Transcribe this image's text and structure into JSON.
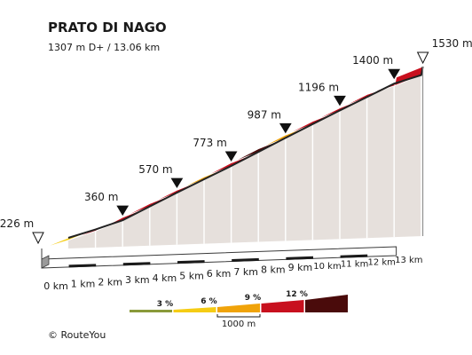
{
  "title": "PRATO DI NAGO",
  "subtitle": "1307 m D+ / 13.06 km",
  "copyright": "©  RouteYou",
  "chart_data": {
    "type": "area",
    "x": [
      0,
      1,
      2,
      3,
      4,
      5,
      6,
      7,
      8,
      9,
      10,
      11,
      12,
      13
    ],
    "x_tick_labels": [
      "0 km",
      "1 km",
      "2 km",
      "3 km",
      "4 km",
      "5 km",
      "6 km",
      "7 km",
      "8 km",
      "9 km",
      "10 km",
      "11 km",
      "12 km",
      "13 km"
    ],
    "elevation_m": [
      226,
      290,
      360,
      465,
      570,
      672,
      773,
      880,
      987,
      1092,
      1196,
      1298,
      1400,
      1465,
      1530
    ],
    "elevation_x_km": [
      0,
      1,
      2,
      3,
      4,
      5,
      6,
      7,
      8,
      9,
      10,
      11,
      12,
      13,
      13.06
    ],
    "segment_colors": [
      "#f5cc14",
      "#c8101e",
      "#c8101e",
      "#c8101e",
      "#c8101e",
      "#f0a30a",
      "#c8101e",
      "#4a0b0b",
      "#f0a30a",
      "#c8101e",
      "#c8101e",
      "#c8101e",
      "#c8101e",
      "#c8101e"
    ],
    "markers": [
      {
        "label": "226 m",
        "x": 0,
        "kind": "start"
      },
      {
        "label": "360 m",
        "x": 2,
        "kind": "point"
      },
      {
        "label": "570 m",
        "x": 4,
        "kind": "point"
      },
      {
        "label": "773 m",
        "x": 6,
        "kind": "point"
      },
      {
        "label": "987 m",
        "x": 8,
        "kind": "point"
      },
      {
        "label": "1196 m",
        "x": 10,
        "kind": "point"
      },
      {
        "label": "1400 m",
        "x": 12,
        "kind": "point"
      },
      {
        "label": "1530 m",
        "x": 13.06,
        "kind": "end"
      }
    ],
    "legend": {
      "items": [
        {
          "label": "3 %",
          "color": "#8a9a3a"
        },
        {
          "label": "6 %",
          "color": "#f5cc14"
        },
        {
          "label": "9 %",
          "color": "#f0a30a"
        },
        {
          "label": "12 %",
          "color": "#c8101e"
        },
        {
          "label": "",
          "color": "#4a0b0b"
        }
      ],
      "scale_label": "1000 m",
      "placement": "bottom-center"
    },
    "colors": {
      "wall": "#e6e0dc",
      "base": "#ffffff",
      "base_edge": "#3a3a3a",
      "top_edge": "#222222"
    }
  }
}
